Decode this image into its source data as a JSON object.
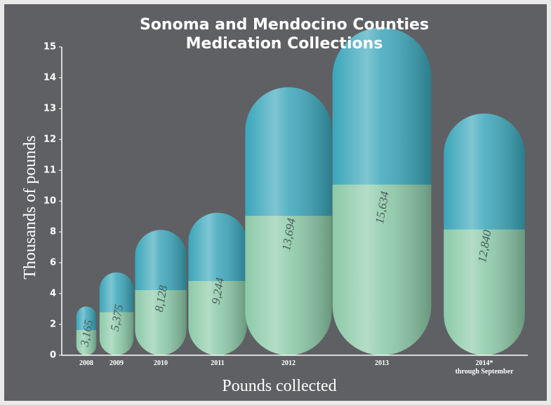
{
  "chart_data": {
    "type": "pill",
    "title": [
      "Sonoma and Mendocino Counties",
      "Medication Collections"
    ],
    "y_label": "Thousands of pounds",
    "x_label": "Pounds collected",
    "categories": [
      "2008",
      "2009",
      "2010",
      "2011",
      "2012",
      "2013",
      "2014*"
    ],
    "category_note": "through September",
    "values": [
      3.165,
      5.375,
      8.128,
      9.244,
      13.694,
      15.634,
      12.84
    ],
    "value_labels": [
      "3,165",
      "5,375",
      "8,128",
      "9,244",
      "13,694",
      "15,634",
      "12,840"
    ],
    "ylim": [
      0,
      15
    ],
    "yticks": [
      0,
      2,
      4,
      6,
      8,
      10,
      11,
      12,
      13,
      14,
      15
    ],
    "colors": {
      "top": "#3aa6ba",
      "bottom": "#8ccaa8"
    }
  }
}
